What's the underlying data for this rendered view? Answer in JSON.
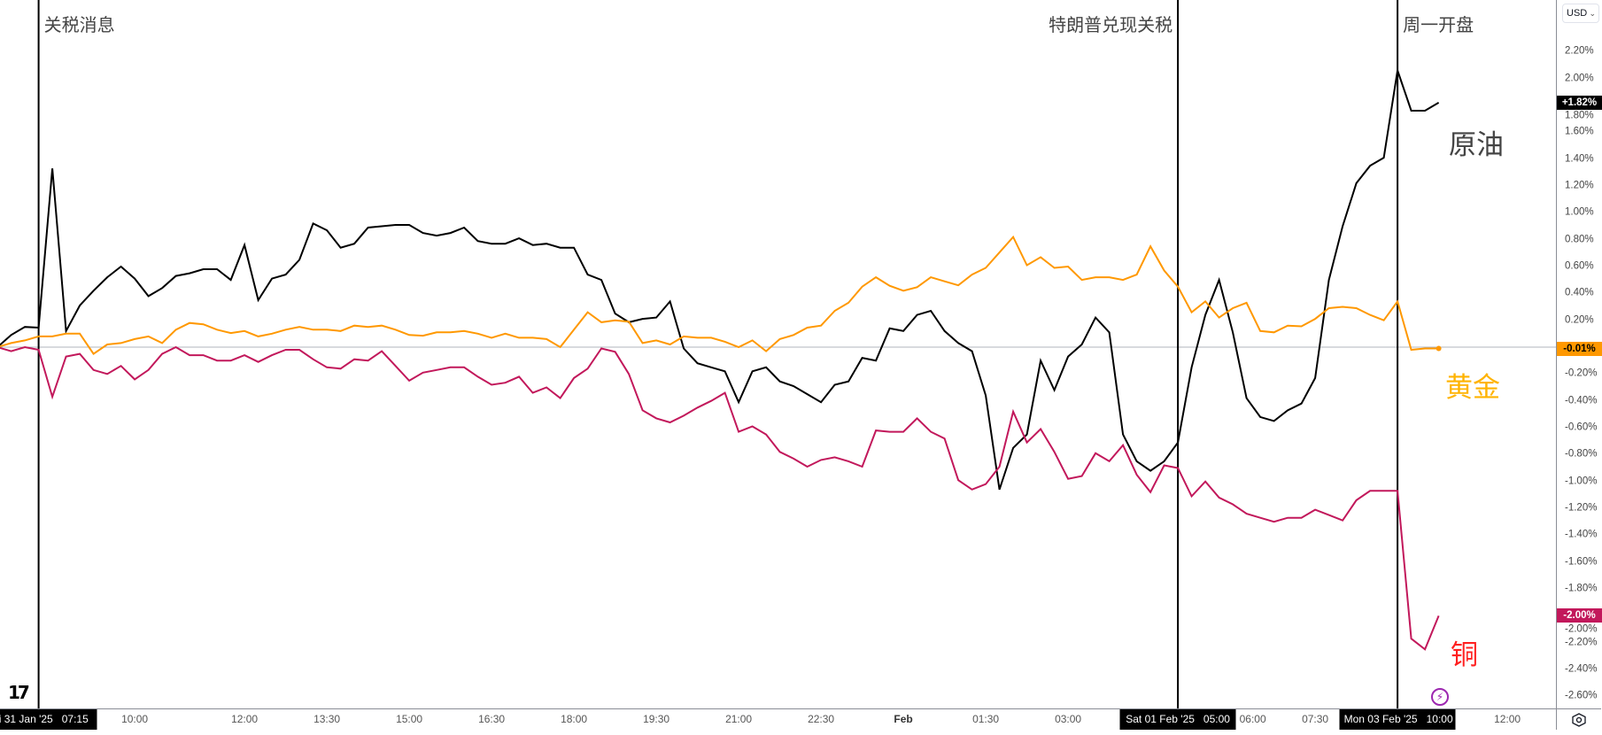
{
  "chart_data": {
    "type": "line",
    "y_unit": "%",
    "ylim": [
      -2.7,
      2.35
    ],
    "grid": false,
    "baseline": 0,
    "x_ticks": [
      {
        "label": "10:00",
        "index": 10
      },
      {
        "label": "12:00",
        "index": 18
      },
      {
        "label": "13:30",
        "index": 24
      },
      {
        "label": "15:00",
        "index": 30
      },
      {
        "label": "16:30",
        "index": 36
      },
      {
        "label": "18:00",
        "index": 42
      },
      {
        "label": "19:30",
        "index": 48
      },
      {
        "label": "21:00",
        "index": 54
      },
      {
        "label": "22:30",
        "index": 60
      },
      {
        "label": "Feb",
        "index": 66,
        "bold": true
      },
      {
        "label": "01:30",
        "index": 72
      },
      {
        "label": "03:00",
        "index": 78
      },
      {
        "label": "06:00",
        "index": 90
      },
      {
        "label": "07:30",
        "index": 96
      },
      {
        "label": "12:00",
        "index": 110
      }
    ],
    "y_ticks": [
      "2.20%",
      "2.00%",
      "1.80%",
      "1.60%",
      "1.40%",
      "1.20%",
      "1.00%",
      "0.80%",
      "0.60%",
      "0.40%",
      "0.20%",
      "0.00%",
      "-0.20%",
      "-0.40%",
      "-0.60%",
      "-0.80%",
      "-1.00%",
      "-1.20%",
      "-1.40%",
      "-1.60%",
      "-1.80%",
      "-2.00%",
      "-2.20%",
      "-2.40%",
      "-2.60%"
    ],
    "markers": [
      {
        "text": "关税消息",
        "index": 3,
        "date": "Fri 31 Jan '25",
        "time": "07:15",
        "align": "right"
      },
      {
        "text": "特朗普兑现关税",
        "index": 86,
        "date": "Sat 01 Feb '25",
        "time": "05:00",
        "align": "left"
      },
      {
        "text": "周一开盘",
        "index": 102,
        "date": "Mon 03 Feb '25",
        "time": "10:00",
        "align": "right"
      }
    ],
    "series": [
      {
        "name": "原油",
        "color": "#000000",
        "label_color": "#444444",
        "last_label": "+1.82%",
        "label_text_color": "#ffffff",
        "values": [
          0.0,
          0.09,
          0.15,
          0.145,
          1.33,
          0.12,
          0.31,
          0.42,
          0.52,
          0.6,
          0.51,
          0.38,
          0.44,
          0.53,
          0.55,
          0.58,
          0.58,
          0.5,
          0.76,
          0.35,
          0.51,
          0.54,
          0.65,
          0.92,
          0.87,
          0.74,
          0.77,
          0.89,
          0.9,
          0.91,
          0.91,
          0.85,
          0.83,
          0.85,
          0.89,
          0.79,
          0.77,
          0.77,
          0.81,
          0.76,
          0.77,
          0.74,
          0.74,
          0.54,
          0.5,
          0.25,
          0.185,
          0.21,
          0.22,
          0.34,
          -0.01,
          -0.12,
          -0.15,
          -0.18,
          -0.41,
          -0.18,
          -0.15,
          -0.255,
          -0.29,
          -0.35,
          -0.41,
          -0.28,
          -0.255,
          -0.08,
          -0.1,
          0.14,
          0.12,
          0.24,
          0.27,
          0.12,
          0.03,
          -0.03,
          -0.36,
          -1.06,
          -0.75,
          -0.65,
          -0.1,
          -0.32,
          -0.07,
          0.02,
          0.22,
          0.11,
          -0.65,
          -0.85,
          -0.92,
          -0.85,
          -0.71,
          -0.15,
          0.24,
          0.5,
          0.11,
          -0.38,
          -0.52,
          -0.55,
          -0.47,
          -0.42,
          -0.23,
          0.5,
          0.9,
          1.22,
          1.35,
          1.41,
          2.06,
          1.76,
          1.76,
          1.82
        ]
      },
      {
        "name": "黄金",
        "color": "#ff9800",
        "label_color": "#ffb300",
        "last_label": "-0.01%",
        "label_text_color": "#000000",
        "end_dot": true,
        "values": [
          0,
          0.03,
          0.05,
          0.08,
          0.08,
          0.1,
          0.1,
          -0.05,
          0.02,
          0.03,
          0.06,
          0.08,
          0.03,
          0.13,
          0.18,
          0.17,
          0.13,
          0.105,
          0.12,
          0.08,
          0.1,
          0.13,
          0.15,
          0.13,
          0.13,
          0.12,
          0.16,
          0.15,
          0.16,
          0.13,
          0.09,
          0.085,
          0.11,
          0.11,
          0.12,
          0.1,
          0.07,
          0.1,
          0.07,
          0.07,
          0.06,
          0,
          0.13,
          0.26,
          0.185,
          0.2,
          0.19,
          0.03,
          0.05,
          0.02,
          0.08,
          0.07,
          0.07,
          0.04,
          0.0,
          0.05,
          -0.03,
          0.06,
          0.09,
          0.145,
          0.16,
          0.27,
          0.33,
          0.45,
          0.52,
          0.457,
          0.42,
          0.446,
          0.52,
          0.49,
          0.46,
          0.54,
          0.59,
          0.705,
          0.82,
          0.61,
          0.67,
          0.59,
          0.6,
          0.5,
          0.52,
          0.52,
          0.5,
          0.54,
          0.75,
          0.57,
          0.45,
          0.26,
          0.34,
          0.22,
          0.29,
          0.33,
          0.12,
          0.11,
          0.16,
          0.155,
          0.21,
          0.29,
          0.3,
          0.29,
          0.24,
          0.2,
          0.34,
          -0.02,
          -0.01,
          -0.01
        ]
      },
      {
        "name": "铜",
        "color": "#c2185b",
        "label_color": "#ff2020",
        "last_label": "-2.00%",
        "label_text_color": "#ffffff",
        "values": [
          0,
          -0.03,
          0,
          -0.02,
          -0.37,
          -0.07,
          -0.05,
          -0.17,
          -0.2,
          -0.14,
          -0.24,
          -0.17,
          -0.05,
          0,
          -0.06,
          -0.06,
          -0.1,
          -0.1,
          -0.06,
          -0.11,
          -0.06,
          -0.02,
          -0.02,
          -0.09,
          -0.15,
          -0.16,
          -0.09,
          -0.1,
          -0.03,
          -0.14,
          -0.25,
          -0.19,
          -0.17,
          -0.15,
          -0.15,
          -0.22,
          -0.28,
          -0.265,
          -0.22,
          -0.34,
          -0.3,
          -0.38,
          -0.23,
          -0.16,
          -0.01,
          -0.035,
          -0.2,
          -0.47,
          -0.53,
          -0.56,
          -0.51,
          -0.45,
          -0.4,
          -0.34,
          -0.63,
          -0.59,
          -0.65,
          -0.78,
          -0.83,
          -0.89,
          -0.84,
          -0.82,
          -0.85,
          -0.89,
          -0.62,
          -0.63,
          -0.63,
          -0.53,
          -0.63,
          -0.68,
          -0.99,
          -1.06,
          -1.02,
          -0.89,
          -0.48,
          -0.71,
          -0.61,
          -0.78,
          -0.98,
          -0.96,
          -0.79,
          -0.85,
          -0.73,
          -0.95,
          -1.08,
          -0.88,
          -0.9,
          -1.11,
          -1.0,
          -1.12,
          -1.17,
          -1.24,
          -1.27,
          -1.3,
          -1.27,
          -1.27,
          -1.21,
          -1.25,
          -1.29,
          -1.14,
          -1.07,
          -1.07,
          -1.07,
          -2.17,
          -2.25,
          -2.0
        ]
      }
    ]
  },
  "price_axis": {
    "currency": "USD"
  },
  "icons": {
    "logo": "tradingview-logo",
    "bolt": "lightning-icon",
    "settings": "gear-icon"
  },
  "logo_text": "TV"
}
